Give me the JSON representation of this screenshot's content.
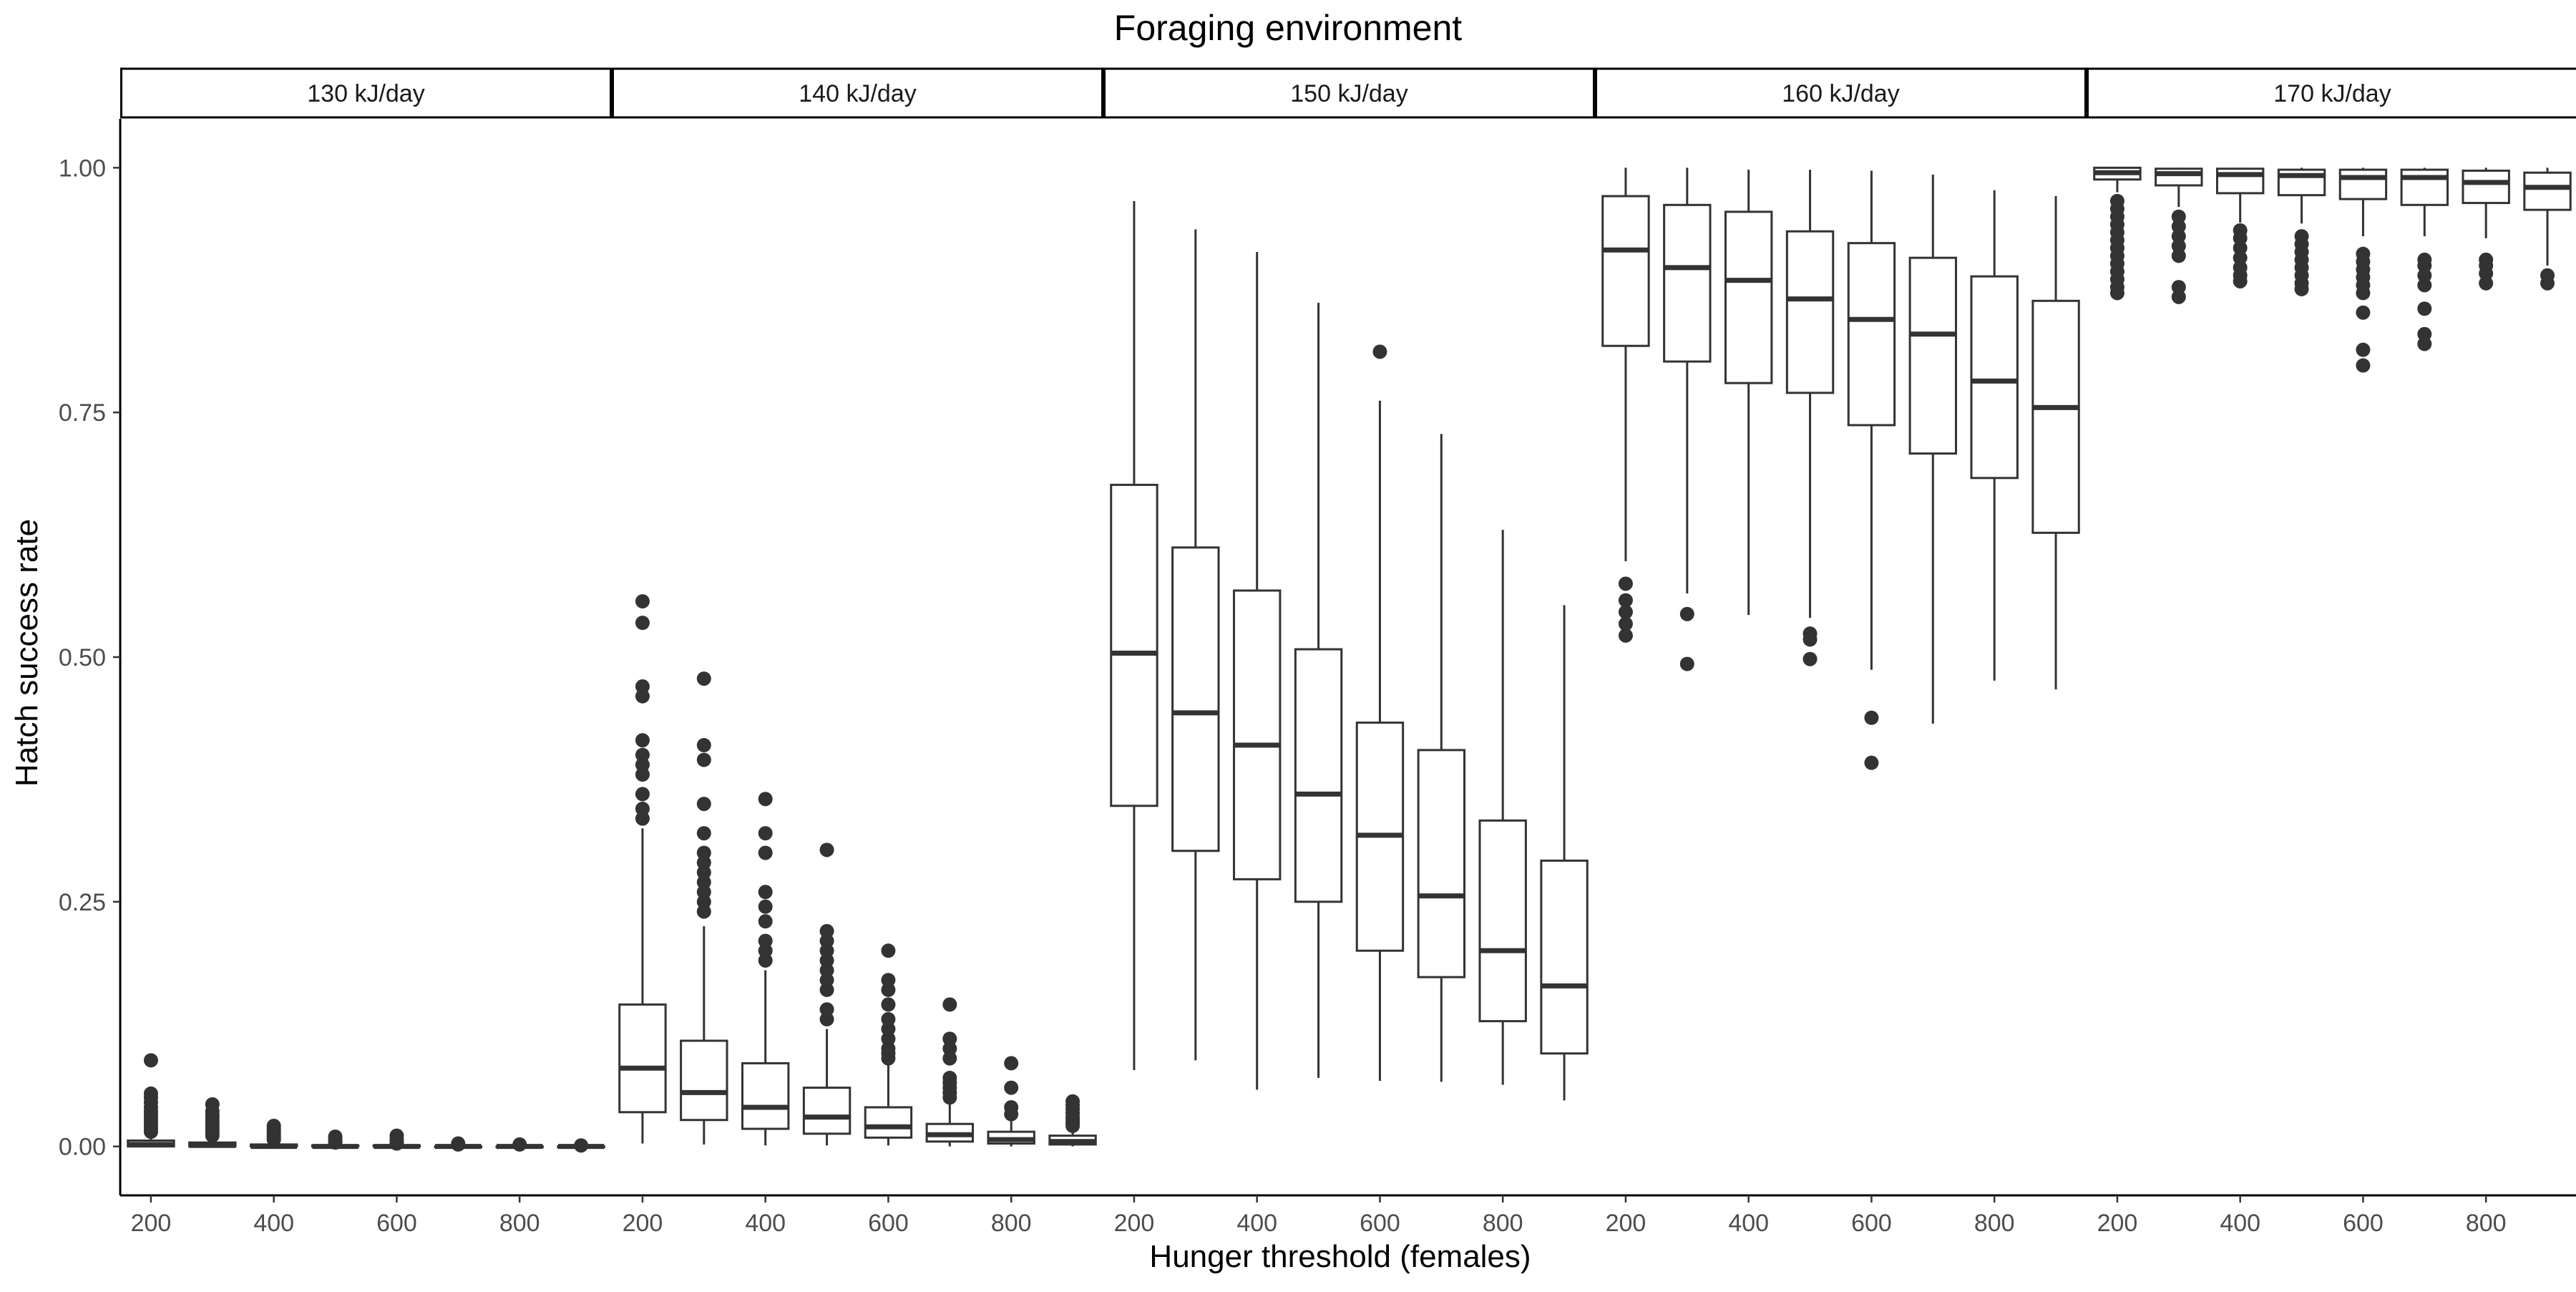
{
  "chart_data": {
    "type": "boxplot",
    "title": "Foraging environment",
    "xlabel": "Hunger threshold (females)",
    "ylabel": "Hatch success rate",
    "ylim": [
      -0.05,
      1.05
    ],
    "y_ticks": [
      "0.00",
      "0.25",
      "0.50",
      "0.75",
      "1.00"
    ],
    "x_range": [
      150,
      950
    ],
    "x_ticks": [
      "200",
      "400",
      "600",
      "800"
    ],
    "x_categories": [
      200,
      300,
      400,
      500,
      600,
      700,
      800,
      900
    ],
    "grid": false,
    "legend": "none",
    "facets": [
      {
        "label": "130 kJ/day",
        "boxes": [
          {
            "x": 200,
            "min": 0.0,
            "q1": 0.0,
            "median": 0.002,
            "q3": 0.006,
            "max": 0.013,
            "outliers": [
              0.015,
              0.018,
              0.021,
              0.024,
              0.027,
              0.03,
              0.033,
              0.036,
              0.04,
              0.045,
              0.05,
              0.054,
              0.088
            ]
          },
          {
            "x": 300,
            "min": 0.0,
            "q1": 0.0,
            "median": 0.001,
            "q3": 0.004,
            "max": 0.009,
            "outliers": [
              0.011,
              0.014,
              0.017,
              0.02,
              0.023,
              0.026,
              0.029,
              0.032,
              0.036,
              0.043
            ]
          },
          {
            "x": 400,
            "min": 0.0,
            "q1": 0.0,
            "median": 0.0,
            "q3": 0.002,
            "max": 0.005,
            "outliers": [
              0.007,
              0.009,
              0.011,
              0.013,
              0.016,
              0.018,
              0.021
            ]
          },
          {
            "x": 500,
            "min": 0.0,
            "q1": 0.0,
            "median": 0.0,
            "q3": 0.001,
            "max": 0.003,
            "outliers": [
              0.004,
              0.006,
              0.008,
              0.01
            ]
          },
          {
            "x": 600,
            "min": 0.0,
            "q1": 0.0,
            "median": 0.0,
            "q3": 0.001,
            "max": 0.002,
            "outliers": [
              0.003,
              0.005,
              0.007,
              0.011
            ]
          },
          {
            "x": 700,
            "min": 0.0,
            "q1": 0.0,
            "median": 0.0,
            "q3": 0.0,
            "max": 0.001,
            "outliers": [
              0.002,
              0.003
            ]
          },
          {
            "x": 800,
            "min": 0.0,
            "q1": 0.0,
            "median": 0.0,
            "q3": 0.0,
            "max": 0.001,
            "outliers": [
              0.002
            ]
          },
          {
            "x": 900,
            "min": 0.0,
            "q1": 0.0,
            "median": 0.0,
            "q3": 0.0,
            "max": 0.0,
            "outliers": [
              0.001
            ]
          }
        ]
      },
      {
        "label": "140 kJ/day",
        "boxes": [
          {
            "x": 200,
            "min": 0.003,
            "q1": 0.035,
            "median": 0.08,
            "q3": 0.145,
            "max": 0.325,
            "outliers": [
              0.335,
              0.345,
              0.36,
              0.38,
              0.39,
              0.4,
              0.415,
              0.46,
              0.47,
              0.535,
              0.557
            ]
          },
          {
            "x": 300,
            "min": 0.002,
            "q1": 0.027,
            "median": 0.055,
            "q3": 0.108,
            "max": 0.225,
            "outliers": [
              0.24,
              0.25,
              0.26,
              0.27,
              0.28,
              0.29,
              0.3,
              0.32,
              0.35,
              0.395,
              0.41,
              0.478
            ]
          },
          {
            "x": 400,
            "min": 0.001,
            "q1": 0.018,
            "median": 0.04,
            "q3": 0.085,
            "max": 0.18,
            "outliers": [
              0.19,
              0.2,
              0.21,
              0.23,
              0.245,
              0.26,
              0.3,
              0.32,
              0.355
            ]
          },
          {
            "x": 500,
            "min": 0.001,
            "q1": 0.013,
            "median": 0.03,
            "q3": 0.06,
            "max": 0.12,
            "outliers": [
              0.13,
              0.14,
              0.16,
              0.17,
              0.18,
              0.19,
              0.2,
              0.21,
              0.22,
              0.303
            ]
          },
          {
            "x": 600,
            "min": 0.001,
            "q1": 0.009,
            "median": 0.02,
            "q3": 0.04,
            "max": 0.085,
            "outliers": [
              0.09,
              0.095,
              0.1,
              0.11,
              0.12,
              0.13,
              0.145,
              0.16,
              0.17,
              0.2
            ]
          },
          {
            "x": 700,
            "min": 0.0,
            "q1": 0.005,
            "median": 0.012,
            "q3": 0.023,
            "max": 0.045,
            "outliers": [
              0.05,
              0.055,
              0.06,
              0.065,
              0.07,
              0.09,
              0.1,
              0.11,
              0.145
            ]
          },
          {
            "x": 800,
            "min": 0.0,
            "q1": 0.003,
            "median": 0.007,
            "q3": 0.015,
            "max": 0.03,
            "outliers": [
              0.033,
              0.04,
              0.06,
              0.085
            ]
          },
          {
            "x": 900,
            "min": 0.0,
            "q1": 0.002,
            "median": 0.005,
            "q3": 0.011,
            "max": 0.019,
            "outliers": [
              0.021,
              0.024,
              0.027,
              0.03,
              0.034,
              0.038,
              0.042,
              0.046
            ]
          }
        ]
      },
      {
        "label": "150 kJ/day",
        "boxes": [
          {
            "x": 200,
            "min": 0.078,
            "q1": 0.348,
            "median": 0.504,
            "q3": 0.676,
            "max": 0.966,
            "outliers": []
          },
          {
            "x": 300,
            "min": 0.088,
            "q1": 0.302,
            "median": 0.443,
            "q3": 0.612,
            "max": 0.937,
            "outliers": []
          },
          {
            "x": 400,
            "min": 0.058,
            "q1": 0.273,
            "median": 0.41,
            "q3": 0.568,
            "max": 0.914,
            "outliers": []
          },
          {
            "x": 500,
            "min": 0.07,
            "q1": 0.25,
            "median": 0.36,
            "q3": 0.508,
            "max": 0.862,
            "outliers": []
          },
          {
            "x": 600,
            "min": 0.067,
            "q1": 0.2,
            "median": 0.318,
            "q3": 0.433,
            "max": 0.762,
            "outliers": [
              0.812
            ]
          },
          {
            "x": 700,
            "min": 0.066,
            "q1": 0.173,
            "median": 0.256,
            "q3": 0.405,
            "max": 0.728,
            "outliers": []
          },
          {
            "x": 800,
            "min": 0.063,
            "q1": 0.128,
            "median": 0.2,
            "q3": 0.333,
            "max": 0.63,
            "outliers": []
          },
          {
            "x": 900,
            "min": 0.047,
            "q1": 0.095,
            "median": 0.164,
            "q3": 0.292,
            "max": 0.553,
            "outliers": []
          }
        ]
      },
      {
        "label": "160 kJ/day",
        "boxes": [
          {
            "x": 200,
            "min": 0.598,
            "q1": 0.818,
            "median": 0.916,
            "q3": 0.971,
            "max": 1.0,
            "outliers": [
              0.522,
              0.534,
              0.546,
              0.558,
              0.575
            ]
          },
          {
            "x": 300,
            "min": 0.565,
            "q1": 0.802,
            "median": 0.898,
            "q3": 0.962,
            "max": 1.0,
            "outliers": [
              0.493,
              0.544
            ]
          },
          {
            "x": 400,
            "min": 0.543,
            "q1": 0.78,
            "median": 0.885,
            "q3": 0.955,
            "max": 0.998,
            "outliers": []
          },
          {
            "x": 500,
            "min": 0.54,
            "q1": 0.77,
            "median": 0.866,
            "q3": 0.935,
            "max": 0.998,
            "outliers": [
              0.498,
              0.518,
              0.524
            ]
          },
          {
            "x": 600,
            "min": 0.487,
            "q1": 0.737,
            "median": 0.845,
            "q3": 0.923,
            "max": 0.997,
            "outliers": [
              0.392,
              0.438
            ]
          },
          {
            "x": 700,
            "min": 0.432,
            "q1": 0.708,
            "median": 0.83,
            "q3": 0.908,
            "max": 0.993,
            "outliers": []
          },
          {
            "x": 800,
            "min": 0.476,
            "q1": 0.683,
            "median": 0.782,
            "q3": 0.889,
            "max": 0.977,
            "outliers": []
          },
          {
            "x": 900,
            "min": 0.467,
            "q1": 0.627,
            "median": 0.755,
            "q3": 0.864,
            "max": 0.971,
            "outliers": []
          }
        ]
      },
      {
        "label": "170 kJ/day",
        "boxes": [
          {
            "x": 200,
            "min": 0.975,
            "q1": 0.988,
            "median": 0.995,
            "q3": 1.0,
            "max": 1.0,
            "outliers": [
              0.872,
              0.878,
              0.886,
              0.894,
              0.902,
              0.91,
              0.918,
              0.926,
              0.934,
              0.942,
              0.95,
              0.958,
              0.966
            ]
          },
          {
            "x": 300,
            "min": 0.96,
            "q1": 0.982,
            "median": 0.994,
            "q3": 0.999,
            "max": 1.0,
            "outliers": [
              0.868,
              0.878,
              0.91,
              0.92,
              0.93,
              0.94,
              0.95
            ]
          },
          {
            "x": 400,
            "min": 0.944,
            "q1": 0.974,
            "median": 0.993,
            "q3": 0.999,
            "max": 1.0,
            "outliers": [
              0.884,
              0.89,
              0.898,
              0.908,
              0.918,
              0.928,
              0.936
            ]
          },
          {
            "x": 500,
            "min": 0.943,
            "q1": 0.972,
            "median": 0.992,
            "q3": 0.998,
            "max": 1.0,
            "outliers": [
              0.876,
              0.882,
              0.89,
              0.898,
              0.906,
              0.914,
              0.922,
              0.93
            ]
          },
          {
            "x": 600,
            "min": 0.93,
            "q1": 0.968,
            "median": 0.99,
            "q3": 0.998,
            "max": 1.0,
            "outliers": [
              0.798,
              0.814,
              0.852,
              0.872,
              0.88,
              0.888,
              0.896,
              0.904,
              0.912
            ]
          },
          {
            "x": 700,
            "min": 0.93,
            "q1": 0.962,
            "median": 0.99,
            "q3": 0.998,
            "max": 1.0,
            "outliers": [
              0.82,
              0.83,
              0.856,
              0.88,
              0.89,
              0.9,
              0.906
            ]
          },
          {
            "x": 800,
            "min": 0.928,
            "q1": 0.964,
            "median": 0.985,
            "q3": 0.997,
            "max": 1.0,
            "outliers": [
              0.882,
              0.892,
              0.9,
              0.906
            ]
          },
          {
            "x": 900,
            "min": 0.9,
            "q1": 0.957,
            "median": 0.98,
            "q3": 0.995,
            "max": 1.0,
            "outliers": [
              0.882,
              0.89
            ]
          }
        ]
      }
    ]
  }
}
